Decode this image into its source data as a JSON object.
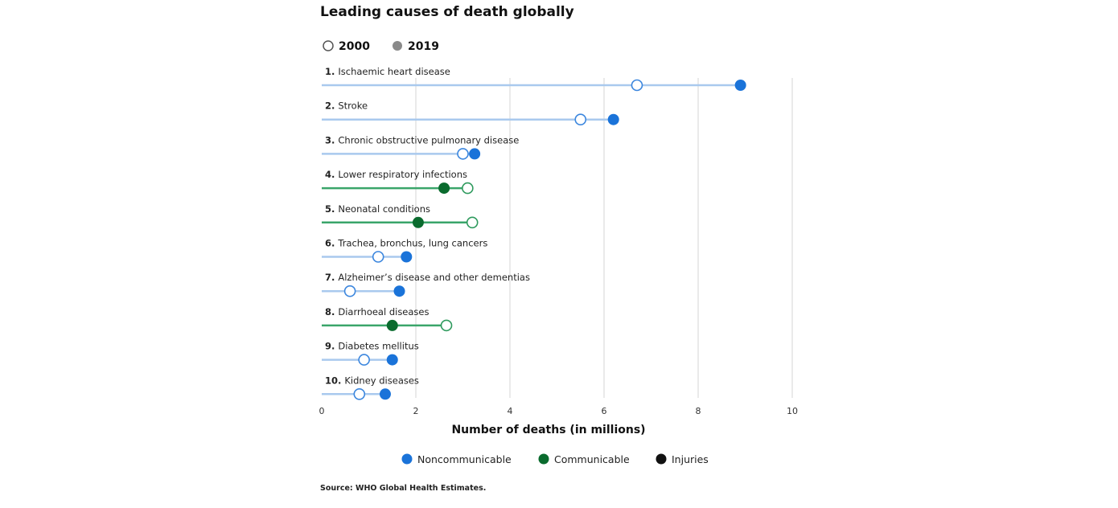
{
  "chart_data": {
    "type": "dumbbell",
    "title": "Leading causes of death globally",
    "year_legend": [
      {
        "label": "2000",
        "style": "hollow"
      },
      {
        "label": "2019",
        "style": "filled",
        "color": "#8a8a8a"
      }
    ],
    "xlabel": "Number of deaths (in millions)",
    "xlim": [
      0,
      10
    ],
    "xticks": [
      "0",
      "2",
      "4",
      "6",
      "8",
      "10"
    ],
    "categories": [
      {
        "rank": "1.",
        "name": "Ischaemic heart disease",
        "group": "noncommunicable",
        "y2000": 6.7,
        "y2019": 8.9
      },
      {
        "rank": "2.",
        "name": "Stroke",
        "group": "noncommunicable",
        "y2000": 5.5,
        "y2019": 6.2
      },
      {
        "rank": "3.",
        "name": "Chronic obstructive pulmonary disease",
        "group": "noncommunicable",
        "y2000": 3.0,
        "y2019": 3.25
      },
      {
        "rank": "4.",
        "name": "Lower respiratory infections",
        "group": "communicable",
        "y2000": 3.1,
        "y2019": 2.6
      },
      {
        "rank": "5.",
        "name": "Neonatal conditions",
        "group": "communicable",
        "y2000": 3.2,
        "y2019": 2.05
      },
      {
        "rank": "6.",
        "name": "Trachea, bronchus, lung cancers",
        "group": "noncommunicable",
        "y2000": 1.2,
        "y2019": 1.8
      },
      {
        "rank": "7.",
        "name": "Alzheimer’s disease and other dementias",
        "group": "noncommunicable",
        "y2000": 0.6,
        "y2019": 1.65
      },
      {
        "rank": "8.",
        "name": "Diarrhoeal diseases",
        "group": "communicable",
        "y2000": 2.65,
        "y2019": 1.5
      },
      {
        "rank": "9.",
        "name": "Diabetes mellitus",
        "group": "noncommunicable",
        "y2000": 0.9,
        "y2019": 1.5
      },
      {
        "rank": "10.",
        "name": "Kidney diseases",
        "group": "noncommunicable",
        "y2000": 0.8,
        "y2019": 1.35
      }
    ],
    "groups": {
      "noncommunicable": {
        "label": "Noncommunicable",
        "color": "#1a73d9",
        "line": "#a9c9ee"
      },
      "communicable": {
        "label": "Communicable",
        "color": "#0a6b2e",
        "line": "#3aa56a"
      },
      "injuries": {
        "label": "Injuries",
        "color": "#111111",
        "line": "#555555"
      }
    },
    "group_legend": [
      "noncommunicable",
      "communicable",
      "injuries"
    ],
    "grid": true,
    "source": "Source: WHO Global Health Estimates."
  }
}
